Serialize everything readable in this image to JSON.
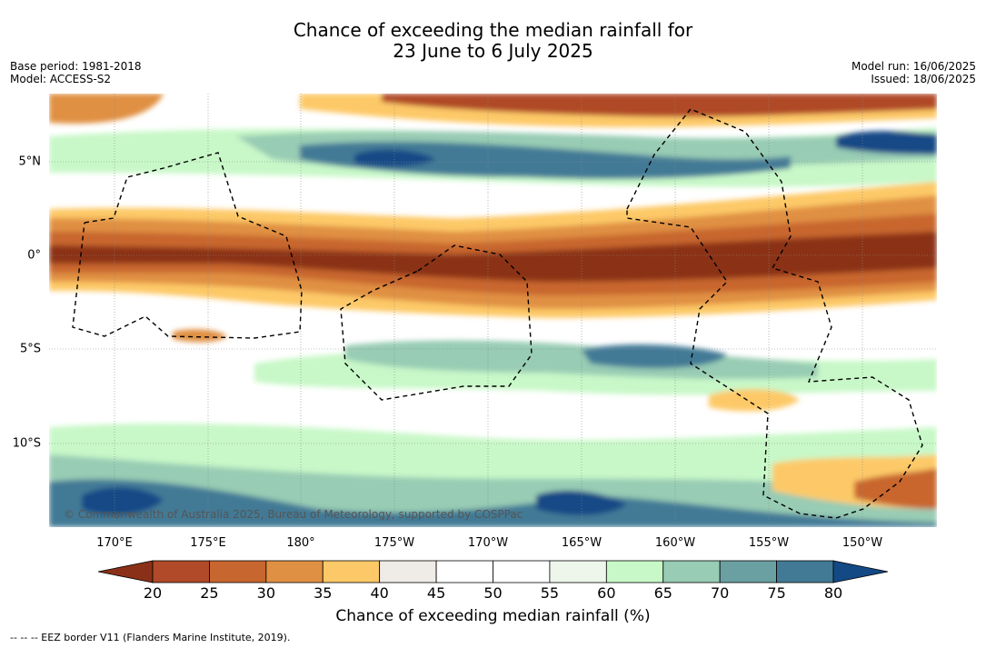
{
  "title_line1": "Chance of exceeding the median rainfall for",
  "title_line2": "23 June to 6 July 2025",
  "meta_left": [
    "Base period: 1981-2018",
    "Model: ACCESS-S2"
  ],
  "meta_right": [
    "Model run: 16/06/2025",
    "Issued: 18/06/2025"
  ],
  "lon_labels": [
    "170°E",
    "175°E",
    "180°",
    "175°W",
    "170°W",
    "165°W",
    "160°W",
    "155°W",
    "150°W"
  ],
  "lat_labels": [
    "5°N",
    "0°",
    "5°S",
    "10°S"
  ],
  "copyright": "© Commonwealth of Australia 2025, Bureau of Meteorology, supported by COSPPac",
  "colorbar": {
    "ticks": [
      "20",
      "25",
      "30",
      "35",
      "40",
      "45",
      "50",
      "55",
      "60",
      "65",
      "70",
      "75",
      "80"
    ],
    "colors": [
      "#8b3018",
      "#b04a28",
      "#c8662f",
      "#e09042",
      "#fdc968",
      "#efebe7",
      "#ffffff",
      "#ffffff",
      "#eef6ec",
      "#c8f8c8",
      "#98ccb4",
      "#6aa0a2",
      "#427a96",
      "#134a86"
    ],
    "label": "Chance of exceeding median rainfall (%)"
  },
  "footer": "--  --  -- EEZ border V11 (Flanders Marine Institute, 2019)."
}
